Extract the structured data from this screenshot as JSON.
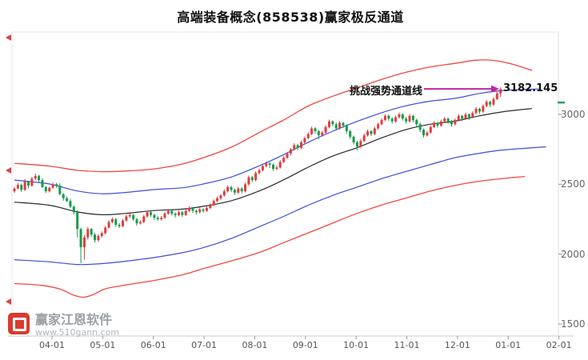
{
  "watermark": {
    "name": "赢家江恩软件",
    "url": "www.510gann.com"
  },
  "colors": {
    "up_candle": "#e13c3c",
    "down_candle": "#169b4b",
    "red_rail": "#f0483f",
    "blue_rail": "#3b4fd8",
    "mid_line": "#2b2b2b",
    "axis_text": "#666666",
    "annotation_arrow": "#c0269e",
    "right_axis_marker_green": "#21a15e",
    "left_edge_marker_red": "#e04040"
  },
  "left_edge_marker_values": [
    3550,
    2600,
    1660
  ],
  "right_axis_marker_value": 3085,
  "chart_data": {
    "type": "candlestick",
    "title": "高端装备概念(858538)赢家极反通道",
    "grid": "off",
    "legend": "none",
    "x_tick_labels": [
      "04-01",
      "05-01",
      "06-01",
      "07-01",
      "08-01",
      "09-01",
      "10-01",
      "11-01",
      "12-01",
      "01-01",
      "02-01"
    ],
    "y_tick_values": [
      3000,
      2500,
      2000,
      1500
    ],
    "y_display_range": [
      1415,
      3520
    ],
    "annotations": {
      "challenge_label": "挑战强势通道线",
      "price_label": "3182.145",
      "price_value": 3182.145
    },
    "candles_ohlc": [
      [
        2450,
        2478,
        2438,
        2470
      ],
      [
        2470,
        2509,
        2463,
        2495
      ],
      [
        2495,
        2505,
        2445,
        2460
      ],
      [
        2460,
        2538,
        2451,
        2520
      ],
      [
        2520,
        2526,
        2472,
        2490
      ],
      [
        2490,
        2552,
        2482,
        2540
      ],
      [
        2540,
        2576,
        2529,
        2560
      ],
      [
        2560,
        2569,
        2514,
        2530
      ],
      [
        2530,
        2543,
        2474,
        2480
      ],
      [
        2480,
        2487,
        2437,
        2450
      ],
      [
        2450,
        2483,
        2442,
        2475
      ],
      [
        2475,
        2514,
        2468,
        2500
      ],
      [
        2500,
        2510,
        2475,
        2490
      ],
      [
        2490,
        2508,
        2421,
        2430
      ],
      [
        2430,
        2436,
        2382,
        2400
      ],
      [
        2400,
        2412,
        2372,
        2380
      ],
      [
        2380,
        2396,
        2329,
        2340
      ],
      [
        2340,
        2349,
        2284,
        2300
      ],
      [
        2300,
        2313,
        2120,
        2180
      ],
      [
        2180,
        2190,
        1935,
        2050
      ],
      [
        2050,
        2135,
        1960,
        2120
      ],
      [
        2120,
        2195,
        2105,
        2180
      ],
      [
        2180,
        2188,
        2125,
        2140
      ],
      [
        2140,
        2152,
        2082,
        2100
      ],
      [
        2100,
        2142,
        2089,
        2130
      ],
      [
        2130,
        2163,
        2118,
        2150
      ],
      [
        2150,
        2202,
        2141,
        2190
      ],
      [
        2190,
        2242,
        2183,
        2230
      ],
      [
        2230,
        2263,
        2221,
        2250
      ],
      [
        2250,
        2258,
        2196,
        2210
      ],
      [
        2210,
        2221,
        2187,
        2200
      ],
      [
        2200,
        2252,
        2192,
        2240
      ],
      [
        2240,
        2282,
        2231,
        2270
      ],
      [
        2270,
        2293,
        2258,
        2280
      ],
      [
        2280,
        2287,
        2238,
        2250
      ],
      [
        2250,
        2259,
        2204,
        2220
      ],
      [
        2220,
        2243,
        2212,
        2230
      ],
      [
        2230,
        2281,
        2222,
        2270
      ],
      [
        2270,
        2312,
        2261,
        2300
      ],
      [
        2300,
        2309,
        2266,
        2280
      ],
      [
        2280,
        2291,
        2245,
        2260
      ],
      [
        2260,
        2272,
        2238,
        2250
      ],
      [
        2250,
        2273,
        2241,
        2260
      ],
      [
        2260,
        2302,
        2252,
        2290
      ],
      [
        2290,
        2323,
        2281,
        2310
      ],
      [
        2310,
        2318,
        2276,
        2290
      ],
      [
        2290,
        2299,
        2262,
        2280
      ],
      [
        2280,
        2312,
        2271,
        2300
      ],
      [
        2300,
        2309,
        2265,
        2280
      ],
      [
        2280,
        2322,
        2272,
        2310
      ],
      [
        2310,
        2343,
        2301,
        2330
      ],
      [
        2330,
        2338,
        2295,
        2310
      ],
      [
        2310,
        2321,
        2284,
        2300
      ],
      [
        2300,
        2333,
        2291,
        2320
      ],
      [
        2320,
        2329,
        2296,
        2310
      ],
      [
        2310,
        2342,
        2302,
        2330
      ],
      [
        2330,
        2363,
        2321,
        2350
      ],
      [
        2350,
        2392,
        2342,
        2380
      ],
      [
        2380,
        2413,
        2371,
        2400
      ],
      [
        2400,
        2429,
        2386,
        2420
      ],
      [
        2420,
        2463,
        2412,
        2450
      ],
      [
        2450,
        2492,
        2441,
        2480
      ],
      [
        2480,
        2489,
        2445,
        2460
      ],
      [
        2460,
        2469,
        2424,
        2440
      ],
      [
        2440,
        2482,
        2431,
        2470
      ],
      [
        2470,
        2478,
        2434,
        2450
      ],
      [
        2450,
        2513,
        2442,
        2500
      ],
      [
        2500,
        2562,
        2491,
        2550
      ],
      [
        2550,
        2559,
        2515,
        2530
      ],
      [
        2530,
        2592,
        2521,
        2580
      ],
      [
        2580,
        2613,
        2571,
        2600
      ],
      [
        2600,
        2642,
        2592,
        2630
      ],
      [
        2630,
        2662,
        2621,
        2650
      ],
      [
        2650,
        2658,
        2616,
        2640
      ],
      [
        2640,
        2649,
        2595,
        2610
      ],
      [
        2610,
        2633,
        2602,
        2620
      ],
      [
        2620,
        2672,
        2612,
        2660
      ],
      [
        2660,
        2702,
        2651,
        2690
      ],
      [
        2690,
        2732,
        2681,
        2720
      ],
      [
        2720,
        2759,
        2706,
        2750
      ],
      [
        2750,
        2793,
        2742,
        2780
      ],
      [
        2780,
        2789,
        2745,
        2760
      ],
      [
        2760,
        2812,
        2751,
        2800
      ],
      [
        2800,
        2842,
        2791,
        2830
      ],
      [
        2830,
        2872,
        2821,
        2860
      ],
      [
        2860,
        2913,
        2851,
        2900
      ],
      [
        2900,
        2909,
        2864,
        2880
      ],
      [
        2880,
        2889,
        2824,
        2850
      ],
      [
        2850,
        2882,
        2841,
        2870
      ],
      [
        2870,
        2922,
        2861,
        2910
      ],
      [
        2910,
        2963,
        2901,
        2950
      ],
      [
        2950,
        2958,
        2915,
        2930
      ],
      [
        2930,
        2941,
        2884,
        2900
      ],
      [
        2900,
        2952,
        2891,
        2940
      ],
      [
        2940,
        2947,
        2904,
        2920
      ],
      [
        2920,
        2929,
        2862,
        2880
      ],
      [
        2880,
        2891,
        2824,
        2840
      ],
      [
        2840,
        2849,
        2784,
        2800
      ],
      [
        2800,
        2811,
        2744,
        2770
      ],
      [
        2770,
        2822,
        2761,
        2810
      ],
      [
        2810,
        2862,
        2801,
        2850
      ],
      [
        2850,
        2892,
        2841,
        2880
      ],
      [
        2880,
        2889,
        2845,
        2860
      ],
      [
        2860,
        2912,
        2851,
        2900
      ],
      [
        2900,
        2942,
        2891,
        2930
      ],
      [
        2930,
        2972,
        2921,
        2960
      ],
      [
        2960,
        3002,
        2951,
        2990
      ],
      [
        2990,
        2999,
        2955,
        2970
      ],
      [
        2970,
        2979,
        2934,
        2950
      ],
      [
        2950,
        2992,
        2941,
        2980
      ],
      [
        2980,
        3013,
        2971,
        3000
      ],
      [
        3000,
        3009,
        2955,
        2970
      ],
      [
        2970,
        2981,
        2934,
        2950
      ],
      [
        2950,
        3002,
        2941,
        2990
      ],
      [
        2990,
        2997,
        2944,
        2960
      ],
      [
        2960,
        2969,
        2914,
        2930
      ],
      [
        2930,
        2941,
        2874,
        2890
      ],
      [
        2890,
        2899,
        2834,
        2850
      ],
      [
        2850,
        2882,
        2841,
        2870
      ],
      [
        2870,
        2922,
        2861,
        2910
      ],
      [
        2910,
        2952,
        2901,
        2940
      ],
      [
        2940,
        2947,
        2904,
        2920
      ],
      [
        2920,
        2962,
        2911,
        2950
      ],
      [
        2950,
        2982,
        2941,
        2970
      ],
      [
        2970,
        2977,
        2934,
        2950
      ],
      [
        2950,
        2959,
        2912,
        2930
      ],
      [
        2930,
        2972,
        2921,
        2960
      ],
      [
        2960,
        3002,
        2951,
        2990
      ],
      [
        2990,
        2997,
        2952,
        2970
      ],
      [
        2970,
        3012,
        2961,
        3000
      ],
      [
        3000,
        3007,
        2962,
        2980
      ],
      [
        2980,
        3022,
        2971,
        3010
      ],
      [
        3010,
        3052,
        3001,
        3040
      ],
      [
        3040,
        3047,
        3002,
        3020
      ],
      [
        3020,
        3072,
        3011,
        3060
      ],
      [
        3060,
        3102,
        3051,
        3090
      ],
      [
        3090,
        3097,
        3052,
        3070
      ],
      [
        3070,
        3122,
        3061,
        3110
      ],
      [
        3110,
        3162,
        3101,
        3150
      ],
      [
        3150,
        3195,
        3125,
        3182
      ]
    ],
    "channel_lines": [
      {
        "name": "upper-rail-red",
        "color": "#f0483f",
        "width": 1.3,
        "points_index_price": [
          [
            0,
            2650
          ],
          [
            10,
            2630
          ],
          [
            18,
            2600
          ],
          [
            25,
            2590
          ],
          [
            32,
            2595
          ],
          [
            40,
            2610
          ],
          [
            48,
            2645
          ],
          [
            54,
            2690
          ],
          [
            62,
            2765
          ],
          [
            70,
            2870
          ],
          [
            77,
            2960
          ],
          [
            84,
            3060
          ],
          [
            91,
            3130
          ],
          [
            98,
            3190
          ],
          [
            105,
            3250
          ],
          [
            112,
            3302
          ],
          [
            119,
            3340
          ],
          [
            126,
            3365
          ],
          [
            132,
            3388
          ],
          [
            137,
            3386
          ],
          [
            142,
            3362
          ],
          [
            148,
            3315
          ]
        ]
      },
      {
        "name": "strong-line-blue",
        "color": "#3b4fd8",
        "width": 1.2,
        "points_index_price": [
          [
            0,
            2530
          ],
          [
            10,
            2502
          ],
          [
            18,
            2452
          ],
          [
            25,
            2432
          ],
          [
            32,
            2442
          ],
          [
            40,
            2462
          ],
          [
            48,
            2475
          ],
          [
            54,
            2502
          ],
          [
            62,
            2552
          ],
          [
            70,
            2632
          ],
          [
            77,
            2712
          ],
          [
            84,
            2800
          ],
          [
            91,
            2880
          ],
          [
            98,
            2950
          ],
          [
            105,
            3012
          ],
          [
            112,
            3062
          ],
          [
            119,
            3095
          ],
          [
            126,
            3115
          ],
          [
            133,
            3150
          ],
          [
            140,
            3172
          ],
          [
            150,
            3182
          ]
        ]
      },
      {
        "name": "life-line-black",
        "color": "#2b2b2b",
        "width": 1.2,
        "points_index_price": [
          [
            0,
            2372
          ],
          [
            10,
            2350
          ],
          [
            18,
            2302
          ],
          [
            25,
            2282
          ],
          [
            32,
            2292
          ],
          [
            40,
            2312
          ],
          [
            48,
            2322
          ],
          [
            54,
            2342
          ],
          [
            62,
            2382
          ],
          [
            70,
            2452
          ],
          [
            77,
            2532
          ],
          [
            84,
            2622
          ],
          [
            91,
            2702
          ],
          [
            98,
            2762
          ],
          [
            105,
            2832
          ],
          [
            112,
            2892
          ],
          [
            119,
            2930
          ],
          [
            126,
            2952
          ],
          [
            133,
            2990
          ],
          [
            140,
            3020
          ],
          [
            148,
            3042
          ]
        ]
      },
      {
        "name": "weak-line-blue",
        "color": "#3b4fd8",
        "width": 1.2,
        "points_index_price": [
          [
            0,
            1960
          ],
          [
            10,
            1945
          ],
          [
            18,
            1926
          ],
          [
            25,
            1932
          ],
          [
            32,
            1950
          ],
          [
            40,
            1976
          ],
          [
            48,
            2010
          ],
          [
            54,
            2046
          ],
          [
            62,
            2112
          ],
          [
            70,
            2196
          ],
          [
            77,
            2270
          ],
          [
            84,
            2350
          ],
          [
            91,
            2420
          ],
          [
            98,
            2480
          ],
          [
            105,
            2540
          ],
          [
            112,
            2592
          ],
          [
            119,
            2642
          ],
          [
            126,
            2690
          ],
          [
            133,
            2722
          ],
          [
            140,
            2746
          ],
          [
            152,
            2768
          ]
        ]
      },
      {
        "name": "lower-rail-red",
        "color": "#f0483f",
        "width": 1.3,
        "points_index_price": [
          [
            0,
            1790
          ],
          [
            8,
            1776
          ],
          [
            13,
            1750
          ],
          [
            17,
            1706
          ],
          [
            20,
            1692
          ],
          [
            23,
            1716
          ],
          [
            26,
            1752
          ],
          [
            32,
            1780
          ],
          [
            40,
            1812
          ],
          [
            48,
            1852
          ],
          [
            54,
            1896
          ],
          [
            62,
            1952
          ],
          [
            70,
            2012
          ],
          [
            77,
            2082
          ],
          [
            84,
            2152
          ],
          [
            91,
            2222
          ],
          [
            98,
            2292
          ],
          [
            105,
            2352
          ],
          [
            112,
            2402
          ],
          [
            119,
            2452
          ],
          [
            126,
            2492
          ],
          [
            133,
            2522
          ],
          [
            140,
            2542
          ],
          [
            146,
            2556
          ]
        ]
      }
    ]
  }
}
